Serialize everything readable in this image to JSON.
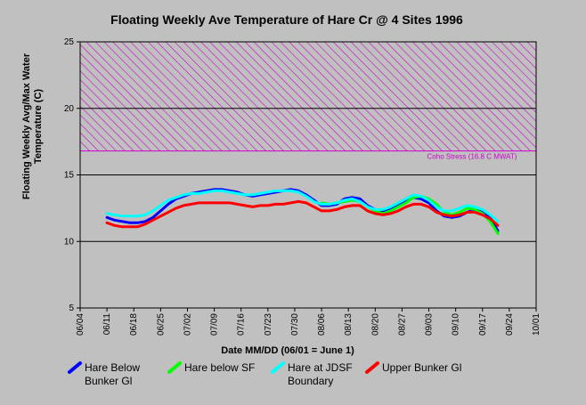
{
  "chart_data": {
    "type": "line",
    "title": "Floating Weekly Ave Temperature of Hare Cr @ 4 Sites 1996",
    "xlabel": "Date MM/DD (06/01 = June 1)",
    "ylabel": "Floating Weekly Avg/Max Water Temperature (C)",
    "ylabel_lines": [
      "Floating Weekly Avg/Max Water",
      "Temperature (C)"
    ],
    "ylim": [
      5,
      25
    ],
    "yticks": [
      5,
      10,
      15,
      20,
      25
    ],
    "xlim_days": [
      3,
      122
    ],
    "xtick_labels": [
      "06/04",
      "06/11",
      "06/18",
      "06/25",
      "07/02",
      "07/09",
      "07/16",
      "07/23",
      "07/30",
      "08/06",
      "08/13",
      "08/20",
      "08/27",
      "09/03",
      "09/10",
      "09/17",
      "09/24",
      "10/01"
    ],
    "grid": "horizontal",
    "threshold": {
      "label": "Coho Stress (16.8 C MWAT)",
      "value": 16.8,
      "upper": 25,
      "color": "#cc00cc"
    },
    "x_dates": [
      "06/11",
      "06/13",
      "06/15",
      "06/17",
      "06/19",
      "06/21",
      "06/23",
      "06/25",
      "06/27",
      "06/29",
      "07/01",
      "07/03",
      "07/05",
      "07/07",
      "07/09",
      "07/11",
      "07/13",
      "07/15",
      "07/17",
      "07/19",
      "07/21",
      "07/23",
      "07/25",
      "07/27",
      "07/29",
      "07/31",
      "08/02",
      "08/04",
      "08/06",
      "08/08",
      "08/10",
      "08/12",
      "08/14",
      "08/16",
      "08/18",
      "08/20",
      "08/22",
      "08/24",
      "08/26",
      "08/28",
      "08/30",
      "09/01",
      "09/03",
      "09/05",
      "09/07",
      "09/09",
      "09/11",
      "09/13",
      "09/15",
      "09/17",
      "09/19",
      "09/21"
    ],
    "series": [
      {
        "name": "Hare Below Bunker Gl",
        "legend_lines": [
          "Hare Below",
          "Bunker Gl"
        ],
        "color": "#0000ff",
        "values": [
          11.8,
          11.6,
          11.5,
          11.4,
          11.4,
          11.5,
          11.8,
          12.3,
          12.8,
          13.2,
          13.4,
          13.6,
          13.7,
          13.8,
          13.9,
          13.9,
          13.8,
          13.7,
          13.5,
          13.4,
          13.5,
          13.6,
          13.7,
          13.8,
          13.9,
          13.8,
          13.5,
          13.1,
          12.7,
          12.7,
          12.8,
          13.2,
          13.3,
          13.2,
          12.7,
          12.4,
          12.2,
          12.5,
          12.8,
          13.1,
          13.3,
          13.2,
          12.9,
          12.3,
          11.9,
          11.8,
          11.9,
          12.2,
          12.4,
          12.2,
          11.8,
          10.8
        ]
      },
      {
        "name": "Hare below SF",
        "legend_lines": [
          "Hare below SF"
        ],
        "color": "#00ff00",
        "values": [
          null,
          null,
          null,
          null,
          null,
          null,
          null,
          null,
          null,
          null,
          null,
          null,
          null,
          null,
          null,
          null,
          null,
          null,
          null,
          null,
          null,
          null,
          null,
          null,
          null,
          null,
          null,
          null,
          12.9,
          12.8,
          12.9,
          13.0,
          13.1,
          13.0,
          12.6,
          12.3,
          12.1,
          12.3,
          12.6,
          12.9,
          13.3,
          13.4,
          13.2,
          12.8,
          12.2,
          12.0,
          12.2,
          12.5,
          12.4,
          12.1,
          11.5,
          10.6
        ]
      },
      {
        "name": "Hare at JDSF Boundary",
        "legend_lines": [
          "Hare at JDSF",
          "Boundary"
        ],
        "color": "#00ffff",
        "values": [
          12.1,
          12.0,
          11.9,
          11.9,
          11.9,
          12.0,
          12.3,
          12.7,
          13.1,
          13.3,
          13.5,
          13.6,
          13.6,
          13.7,
          13.8,
          13.8,
          13.7,
          13.6,
          13.5,
          13.5,
          13.6,
          13.7,
          13.8,
          13.8,
          13.8,
          13.7,
          13.4,
          13.0,
          12.8,
          12.8,
          12.9,
          13.1,
          13.2,
          13.0,
          12.6,
          12.4,
          12.4,
          12.6,
          12.9,
          13.2,
          13.5,
          13.4,
          13.1,
          12.6,
          12.3,
          12.3,
          12.5,
          12.7,
          12.6,
          12.4,
          12.0,
          11.5
        ]
      },
      {
        "name": "Upper Bunker Gl",
        "legend_lines": [
          "Upper Bunker Gl"
        ],
        "color": "#ff0000",
        "values": [
          11.4,
          11.2,
          11.1,
          11.1,
          11.1,
          11.3,
          11.6,
          11.9,
          12.2,
          12.5,
          12.7,
          12.8,
          12.9,
          12.9,
          12.9,
          12.9,
          12.9,
          12.8,
          12.7,
          12.6,
          12.7,
          12.7,
          12.8,
          12.8,
          12.9,
          13.0,
          12.9,
          12.6,
          12.3,
          12.3,
          12.4,
          12.6,
          12.7,
          12.7,
          12.3,
          12.1,
          12.0,
          12.1,
          12.3,
          12.6,
          12.8,
          12.8,
          12.6,
          12.2,
          12.0,
          11.9,
          12.0,
          12.2,
          12.2,
          12.0,
          11.7,
          11.2
        ]
      }
    ]
  }
}
